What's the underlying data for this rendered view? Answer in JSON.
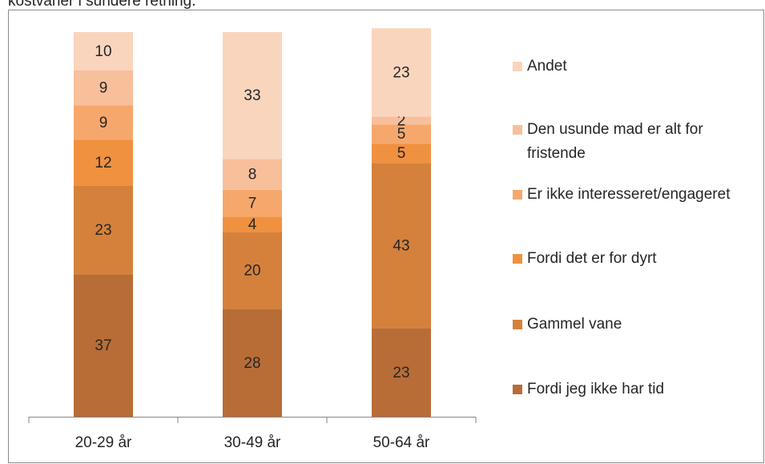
{
  "chart_data": {
    "type": "stacked_bar",
    "title": "kostvaner i sundere retning.",
    "categories": [
      "20-29 år",
      "30-49 år",
      "50-64 år"
    ],
    "ylim": [
      0,
      100
    ],
    "series": [
      {
        "name": "Fordi jeg ikke har tid",
        "color": "#b86d36",
        "values": [
          37,
          28,
          23
        ]
      },
      {
        "name": "Gammel vane",
        "color": "#d5813c",
        "values": [
          23,
          20,
          43
        ]
      },
      {
        "name": "Fordi det er for dyrt",
        "color": "#f0913f",
        "values": [
          12,
          4,
          5
        ]
      },
      {
        "name": "Er ikke interesseret/engageret",
        "color": "#f6a86c",
        "values": [
          9,
          7,
          5
        ]
      },
      {
        "name": "Den usunde mad er alt for fristende",
        "color": "#f8bf9b",
        "values": [
          9,
          8,
          2
        ]
      },
      {
        "name": "Andet",
        "color": "#fad5be",
        "values": [
          10,
          33,
          23
        ]
      }
    ]
  }
}
